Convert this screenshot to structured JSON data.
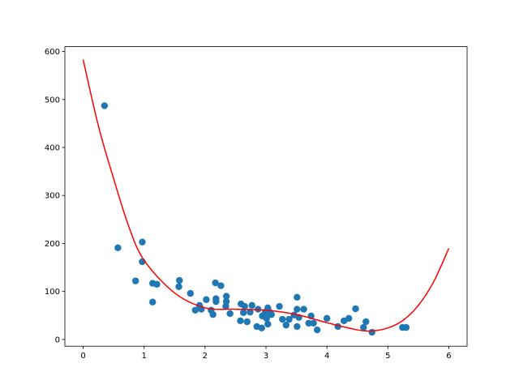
{
  "chart_data": {
    "type": "scatter",
    "title": "",
    "xlabel": "",
    "ylabel": "",
    "xlim": [
      -0.3,
      6.3
    ],
    "ylim": [
      -14,
      610
    ],
    "xticks": [
      0,
      1,
      2,
      3,
      4,
      5,
      6
    ],
    "yticks": [
      0,
      100,
      200,
      300,
      400,
      500,
      600
    ],
    "grid": false,
    "legend": "none",
    "colors": {
      "points": "#1f77b4",
      "fit": "#ff0000"
    },
    "series": [
      {
        "type": "scatter",
        "x": [
          0.35,
          0.57,
          0.97,
          0.97,
          0.86,
          1.14,
          1.21,
          1.14,
          1.58,
          1.57,
          1.76,
          1.84,
          1.91,
          1.94,
          2.02,
          2.1,
          2.13,
          2.17,
          2.18,
          2.18,
          2.26,
          2.35,
          2.35,
          2.34,
          2.41,
          2.59,
          2.58,
          2.65,
          2.63,
          2.69,
          2.77,
          2.74,
          2.85,
          2.87,
          2.93,
          2.94,
          2.99,
          3.01,
          3.03,
          3.06,
          3.09,
          3.03,
          3.22,
          3.27,
          3.33,
          3.38,
          3.46,
          3.51,
          3.51,
          3.51,
          3.54,
          3.62,
          3.7,
          3.74,
          3.78,
          3.84,
          4.0,
          4.18,
          4.28,
          4.36,
          4.47,
          4.6,
          4.64,
          4.74,
          5.24,
          5.3
        ],
        "y": [
          487,
          191,
          203,
          162,
          122,
          117,
          115,
          78,
          123,
          110,
          96,
          61,
          71,
          63,
          83,
          61,
          52,
          118,
          85,
          79,
          112,
          90,
          79,
          69,
          54,
          74,
          39,
          69,
          56,
          37,
          71,
          57,
          27,
          63,
          24,
          49,
          57,
          44,
          32,
          57,
          52,
          66,
          69,
          42,
          30,
          42,
          51,
          88,
          63,
          27,
          46,
          63,
          34,
          49,
          34,
          20,
          44,
          27,
          39,
          44,
          64,
          25,
          37,
          15,
          25,
          25
        ]
      },
      {
        "type": "line",
        "x": [
          0,
          0.25,
          0.5,
          0.75,
          1,
          1.5,
          2,
          2.5,
          3,
          3.5,
          4,
          4.5,
          4.75,
          5,
          5.25,
          5.5,
          5.75,
          6
        ],
        "y": [
          583,
          445,
          335,
          235,
          165,
          97,
          66,
          63,
          61,
          52,
          35,
          20,
          18,
          24,
          40,
          71,
          120,
          190
        ]
      }
    ]
  }
}
